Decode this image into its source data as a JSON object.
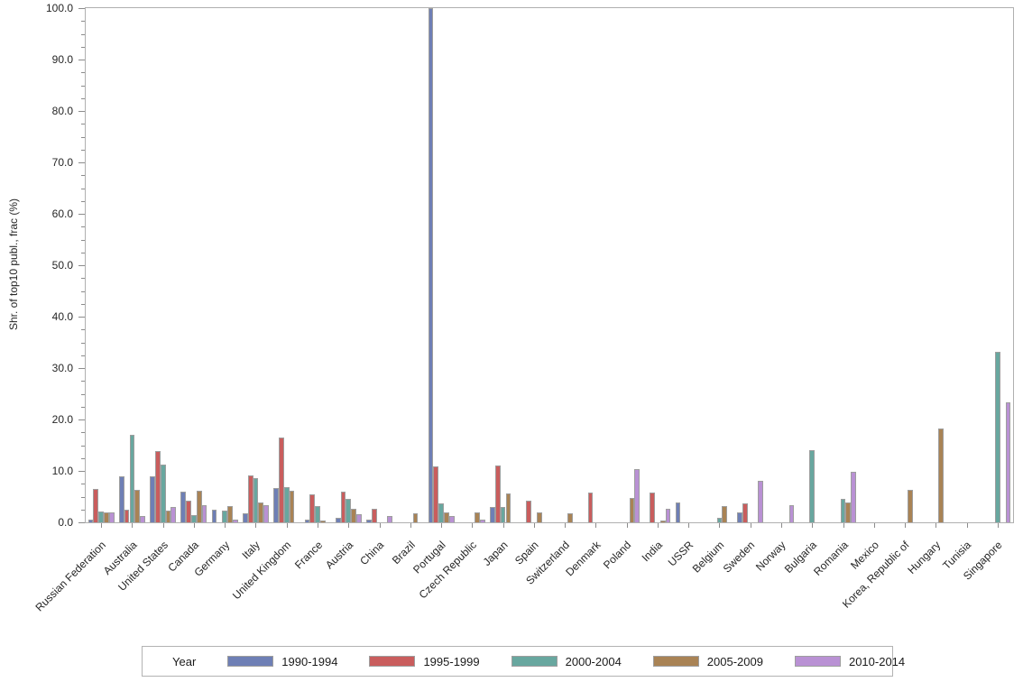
{
  "chart_data": {
    "type": "bar",
    "title": "",
    "xlabel": "",
    "ylabel": "Shr. of top10 publ., frac (%)",
    "ylim": [
      0,
      100
    ],
    "ytick_major_step": 10,
    "ytick_minor_step": 2.5,
    "ytick_labels": [
      "0.0",
      "10.0",
      "20.0",
      "30.0",
      "40.0",
      "50.0",
      "60.0",
      "70.0",
      "80.0",
      "90.0",
      "100.0"
    ],
    "grid": "off",
    "legend_position": "bottom",
    "legend_title": "Year",
    "categories": [
      "Russian Federation",
      "Australia",
      "United States",
      "Canada",
      "Germany",
      "Italy",
      "United Kingdom",
      "France",
      "Austria",
      "China",
      "Brazil",
      "Portugal",
      "Czech Republic",
      "Japan",
      "Spain",
      "Switzerland",
      "Denmark",
      "Poland",
      "India",
      "USSR",
      "Belgium",
      "Sweden",
      "Norway",
      "Bulgaria",
      "Romania",
      "Mexico",
      "Korea, Republic of",
      "Hungary",
      "Tunisia",
      "Singapore"
    ],
    "series": [
      {
        "name": "1990-1994",
        "color": "#6e7fb5",
        "values": [
          0.6,
          9.0,
          8.9,
          5.9,
          2.5,
          1.8,
          6.7,
          0.5,
          0.9,
          0.5,
          0,
          100.0,
          0,
          3.0,
          0,
          0,
          0,
          0,
          0,
          3.9,
          0,
          2.0,
          0,
          0,
          0,
          0,
          0,
          0,
          0,
          0
        ]
      },
      {
        "name": "1995-1999",
        "color": "#c95d5d",
        "values": [
          6.5,
          2.5,
          13.8,
          4.2,
          0,
          9.1,
          16.5,
          5.5,
          5.9,
          2.6,
          0,
          10.9,
          0,
          11.0,
          4.2,
          0,
          5.8,
          0,
          5.8,
          0,
          0,
          3.7,
          0,
          0,
          0,
          0,
          0,
          0,
          0,
          0
        ]
      },
      {
        "name": "2000-2004",
        "color": "#68a79f",
        "values": [
          2.1,
          17.0,
          11.2,
          1.4,
          2.3,
          8.6,
          6.8,
          3.2,
          4.6,
          0,
          0,
          3.7,
          0,
          3.0,
          0,
          0,
          0,
          0,
          0,
          0,
          0.8,
          0,
          0,
          14.1,
          4.6,
          0,
          0,
          0,
          0,
          33.2
        ]
      },
      {
        "name": "2005-2009",
        "color": "#a98355",
        "values": [
          1.9,
          6.3,
          2.2,
          6.2,
          3.2,
          3.9,
          6.1,
          0.4,
          2.7,
          0,
          1.8,
          1.9,
          2.0,
          5.7,
          2.0,
          1.7,
          0,
          4.7,
          0.3,
          0,
          3.1,
          0,
          0,
          0,
          3.9,
          0,
          6.3,
          18.3,
          0,
          0
        ]
      },
      {
        "name": "2010-2014",
        "color": "#b991d4",
        "values": [
          2.0,
          1.2,
          2.9,
          3.4,
          0.6,
          3.4,
          0,
          0,
          1.5,
          1.2,
          0,
          1.2,
          0.6,
          0,
          0,
          0,
          0,
          10.3,
          2.7,
          0,
          0,
          8.1,
          3.4,
          0,
          9.9,
          0,
          0,
          0,
          0,
          23.4
        ]
      }
    ]
  }
}
